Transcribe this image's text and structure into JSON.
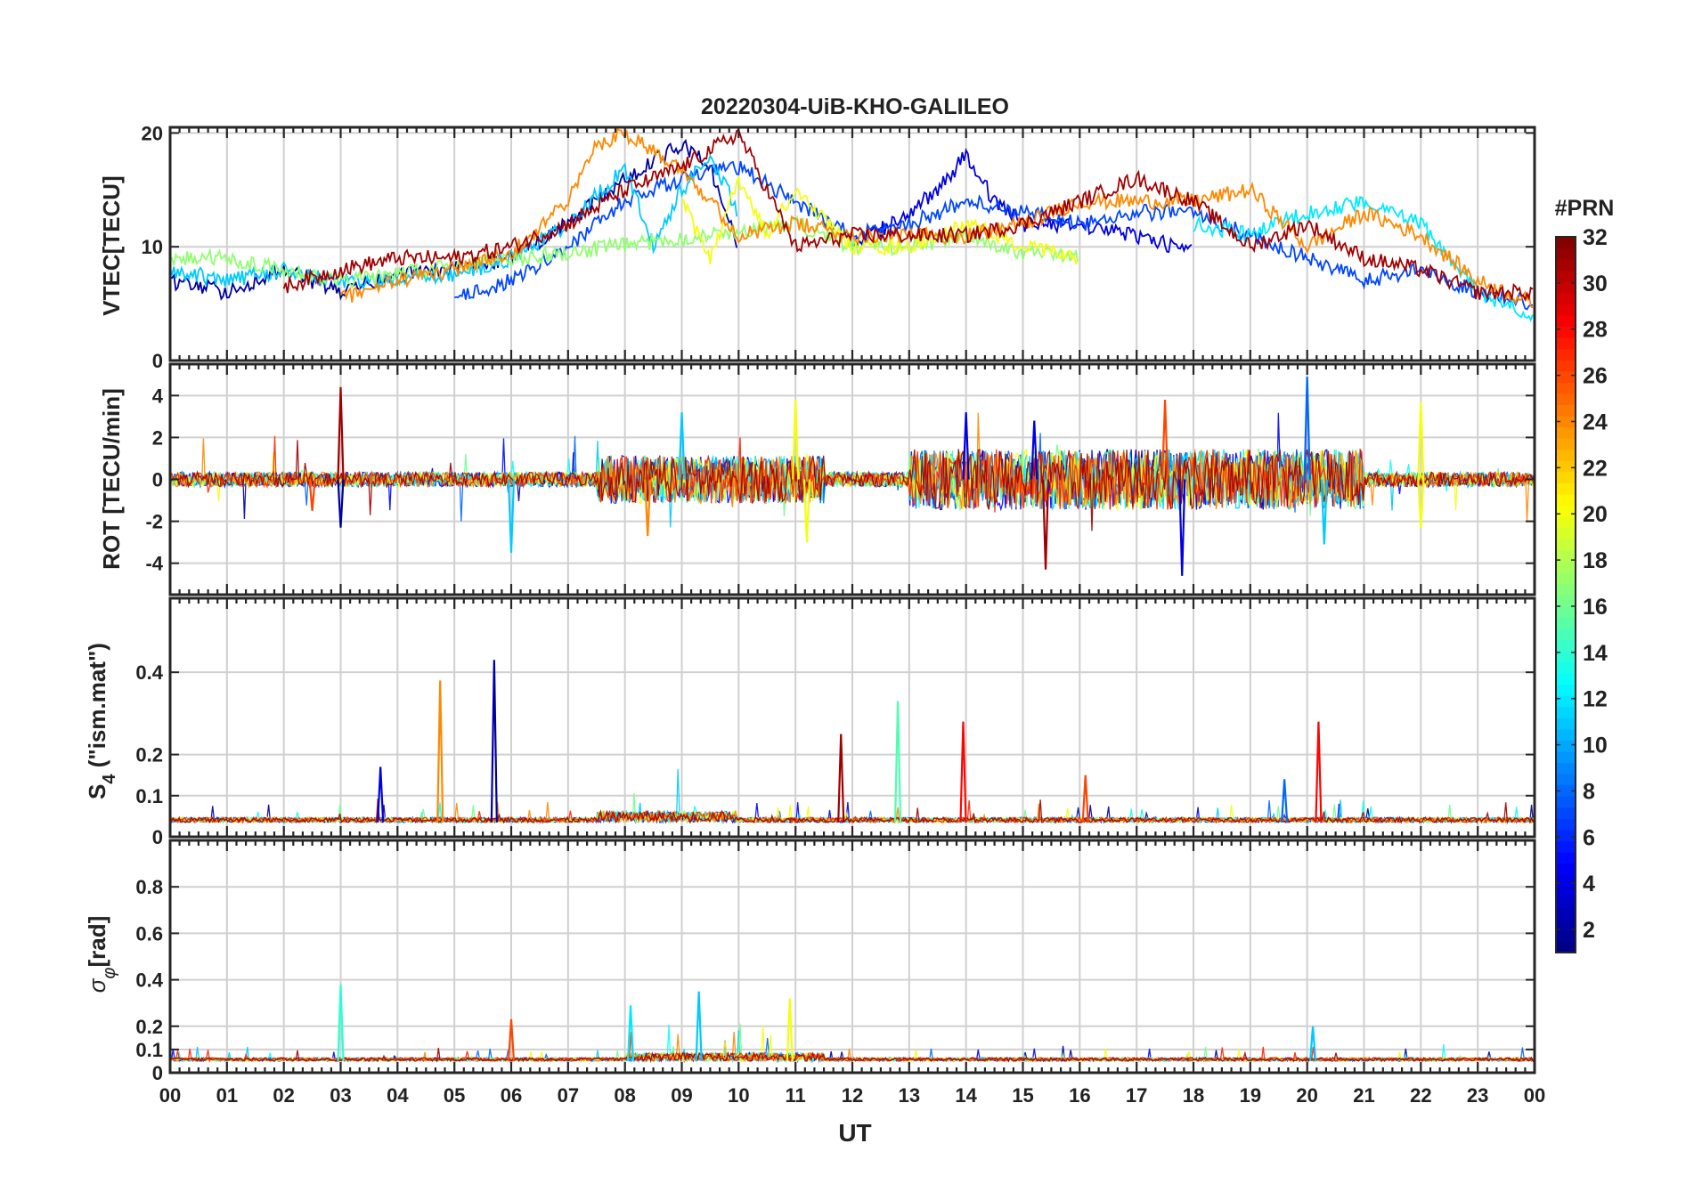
{
  "chart_data": {
    "title": "20220304-UiB-KHO-GALILEO",
    "xlabel": "UT",
    "x_ticks": [
      "00",
      "01",
      "02",
      "03",
      "04",
      "05",
      "06",
      "07",
      "08",
      "09",
      "10",
      "11",
      "12",
      "13",
      "14",
      "15",
      "16",
      "17",
      "18",
      "19",
      "20",
      "21",
      "22",
      "23",
      "00"
    ],
    "x_range_hours": [
      0,
      24
    ],
    "colorbar": {
      "title": "#PRN",
      "range": [
        1,
        32
      ],
      "ticks": [
        "2",
        "4",
        "6",
        "8",
        "10",
        "12",
        "14",
        "16",
        "18",
        "20",
        "22",
        "24",
        "26",
        "28",
        "30",
        "32"
      ],
      "colormap": "jet"
    },
    "panels": [
      {
        "id": "vtec",
        "type": "line",
        "ylabel": "VTEC[TECU]",
        "ylim": [
          0,
          20.5
        ],
        "yticks": [
          "0",
          "10",
          "20"
        ],
        "ytick_values": [
          0,
          10,
          20
        ],
        "grid": true,
        "series": [
          {
            "prn": 2,
            "x": [
              0,
              1,
              2,
              3,
              4,
              5,
              6,
              7,
              8,
              9,
              9.5,
              10
            ],
            "y": [
              7,
              6,
              8,
              6,
              7.5,
              8,
              9,
              12,
              16,
              19,
              17,
              10
            ]
          },
          {
            "prn": 4,
            "x": [
              12,
              13,
              13.5,
              14,
              14.5,
              15,
              16,
              17,
              18
            ],
            "y": [
              10,
              13,
              15,
              18,
              14,
              12,
              12,
              11,
              9.5
            ]
          },
          {
            "prn": 7,
            "x": [
              5,
              6,
              7,
              8,
              9,
              10,
              11,
              12,
              13,
              14,
              15,
              16,
              17,
              18,
              19,
              20,
              21,
              22,
              23,
              24
            ],
            "y": [
              5.5,
              7,
              10,
              14,
              16,
              17,
              14,
              11,
              12,
              14,
              13,
              12,
              13,
              13,
              11,
              9,
              7,
              8,
              6,
              5
            ]
          },
          {
            "prn": 11,
            "x": [
              0,
              1,
              2,
              3,
              4,
              5,
              6,
              7,
              8,
              8.5,
              9,
              9.5,
              10
            ],
            "y": [
              8,
              7,
              8,
              7,
              7,
              7.5,
              9,
              12,
              17,
              10,
              15,
              18,
              13
            ]
          },
          {
            "prn": 12,
            "x": [
              18,
              19,
              20,
              21,
              22,
              23,
              24
            ],
            "y": [
              12,
              11,
              13,
              14,
              12,
              6,
              4
            ]
          },
          {
            "prn": 17,
            "x": [
              0,
              1,
              2,
              3,
              11,
              12,
              13,
              14,
              15,
              16
            ],
            "y": [
              9,
              9,
              8,
              7,
              12,
              10,
              10,
              11,
              9.5,
              9
            ]
          },
          {
            "prn": 20,
            "x": [
              9,
              9.5,
              10,
              10.5,
              11,
              12,
              13,
              14,
              15,
              16
            ],
            "y": [
              14,
              9,
              16,
              11,
              15,
              10,
              10,
              12,
              10,
              9
            ]
          },
          {
            "prn": 24,
            "x": [
              3,
              4,
              5,
              6,
              7,
              7.5,
              8,
              9,
              10,
              11,
              12,
              13,
              14,
              15,
              16,
              17,
              18,
              19,
              20,
              21,
              22,
              23,
              24
            ],
            "y": [
              5.5,
              7,
              8,
              9.5,
              14,
              19,
              20,
              17,
              11,
              12,
              11,
              11,
              11,
              12,
              14,
              14,
              14,
              15,
              10,
              13,
              11,
              7,
              5
            ]
          },
          {
            "prn": 31,
            "x": [
              2,
              3,
              4,
              5,
              6,
              7,
              8,
              9,
              10,
              10.5,
              11,
              12,
              13,
              14,
              15,
              16,
              17,
              18,
              19,
              20,
              21,
              22,
              23,
              24
            ],
            "y": [
              6.5,
              8,
              9,
              9,
              10,
              12,
              15,
              17,
              20,
              15,
              10,
              11,
              11,
              11,
              12,
              14,
              16,
              14,
              10,
              12,
              9,
              8,
              6,
              6
            ]
          }
        ]
      },
      {
        "id": "rot",
        "type": "line",
        "ylabel": "ROT [TECU/min]",
        "ylim": [
          -5.5,
          5.5
        ],
        "yticks": [
          "-4",
          "-2",
          "0",
          "2",
          "4"
        ],
        "ytick_values": [
          -4,
          -2,
          0,
          2,
          4
        ],
        "grid": true,
        "spikes": [
          {
            "prn": 31,
            "x": 3.0,
            "y": 4.4
          },
          {
            "prn": 2,
            "x": 3.0,
            "y": -2.3
          },
          {
            "prn": 26,
            "x": 2.5,
            "y": -1.5
          },
          {
            "prn": 11,
            "x": 6.0,
            "y": -3.5
          },
          {
            "prn": 11,
            "x": 9.0,
            "y": 3.2
          },
          {
            "prn": 24,
            "x": 8.4,
            "y": -2.7
          },
          {
            "prn": 20,
            "x": 11.0,
            "y": 3.8
          },
          {
            "prn": 20,
            "x": 11.2,
            "y": -3.0
          },
          {
            "prn": 4,
            "x": 14.0,
            "y": 3.2
          },
          {
            "prn": 31,
            "x": 15.4,
            "y": -4.3
          },
          {
            "prn": 4,
            "x": 15.2,
            "y": 2.8
          },
          {
            "prn": 26,
            "x": 17.5,
            "y": 3.8
          },
          {
            "prn": 4,
            "x": 17.8,
            "y": -4.6
          },
          {
            "prn": 8,
            "x": 20.0,
            "y": 4.9
          },
          {
            "prn": 11,
            "x": 20.3,
            "y": -3.1
          },
          {
            "prn": 20,
            "x": 22.0,
            "y": 3.7
          },
          {
            "prn": 20,
            "x": 22.0,
            "y": -2.3
          }
        ]
      },
      {
        "id": "s4",
        "type": "line",
        "ylabel": "S4 (\"ism.mat\")",
        "ylim": [
          0,
          0.58
        ],
        "yticks": [
          "0",
          "0.1",
          "0.2",
          "0.4"
        ],
        "ytick_values": [
          0,
          0.1,
          0.2,
          0.4
        ],
        "grid": true,
        "spikes": [
          {
            "prn": 4,
            "x": 3.7,
            "y": 0.17
          },
          {
            "prn": 24,
            "x": 4.75,
            "y": 0.38
          },
          {
            "prn": 2,
            "x": 5.7,
            "y": 0.43
          },
          {
            "prn": 31,
            "x": 11.8,
            "y": 0.25
          },
          {
            "prn": 15,
            "x": 12.8,
            "y": 0.33
          },
          {
            "prn": 28,
            "x": 13.95,
            "y": 0.28
          },
          {
            "prn": 26,
            "x": 16.1,
            "y": 0.15
          },
          {
            "prn": 28,
            "x": 20.2,
            "y": 0.28
          },
          {
            "prn": 8,
            "x": 19.6,
            "y": 0.14
          }
        ]
      },
      {
        "id": "sigma_phi",
        "type": "line",
        "ylabel": "σφ[rad]",
        "ylim": [
          0,
          1.0
        ],
        "yticks": [
          "0",
          "0.1",
          "0.2",
          "0.4",
          "0.6",
          "0.8"
        ],
        "ytick_values": [
          0,
          0.1,
          0.2,
          0.4,
          0.6,
          0.8
        ],
        "grid": true,
        "spikes": [
          {
            "prn": 14,
            "x": 3.0,
            "y": 0.38
          },
          {
            "prn": 26,
            "x": 6.0,
            "y": 0.23
          },
          {
            "prn": 12,
            "x": 8.1,
            "y": 0.29
          },
          {
            "prn": 11,
            "x": 9.3,
            "y": 0.35
          },
          {
            "prn": 20,
            "x": 10.9,
            "y": 0.32
          },
          {
            "prn": 11,
            "x": 20.1,
            "y": 0.2
          }
        ]
      }
    ]
  }
}
